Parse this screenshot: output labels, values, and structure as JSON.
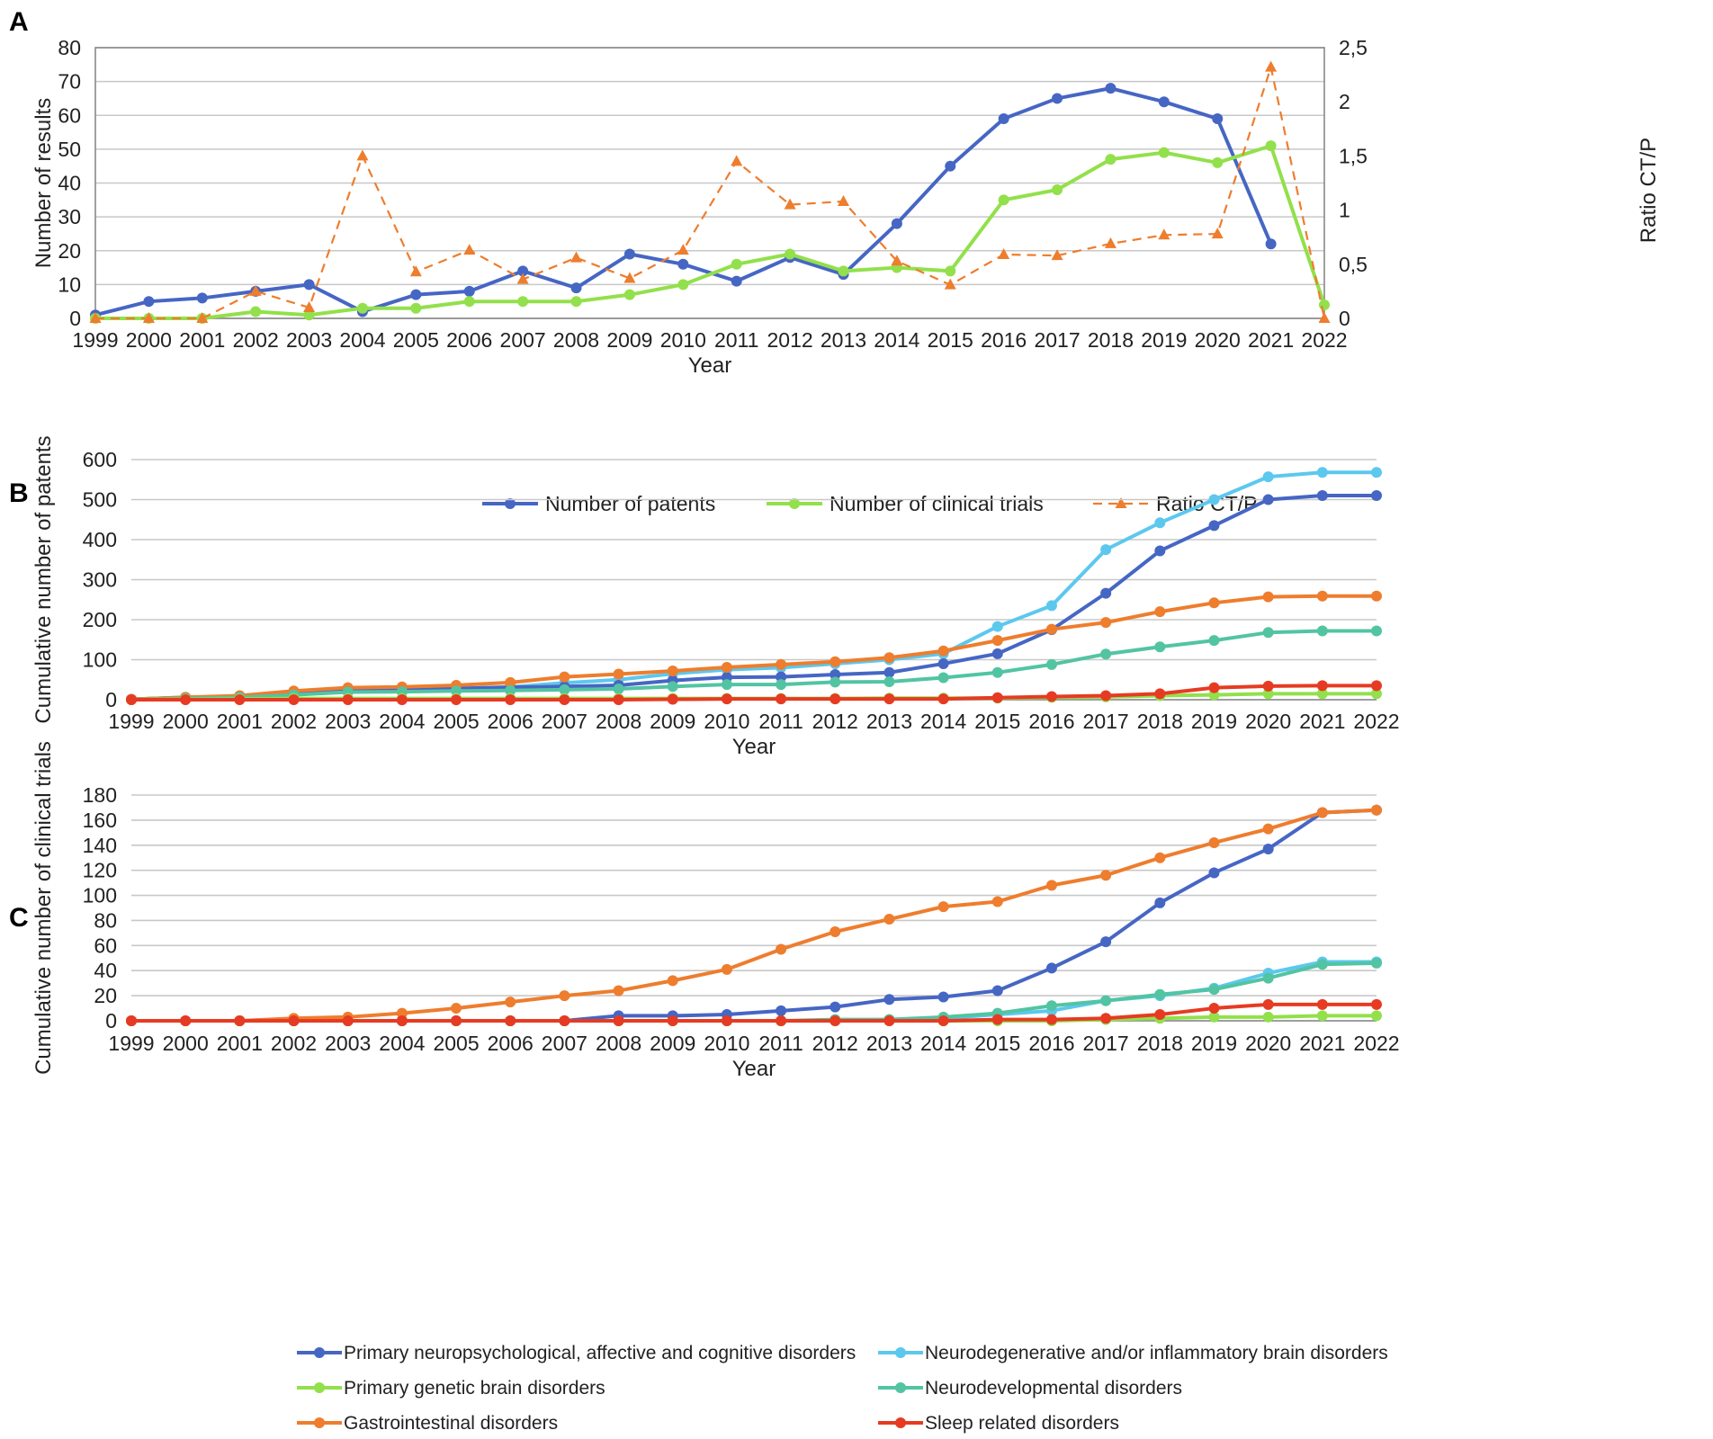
{
  "chart_data": [
    {
      "panel": "A",
      "type": "line",
      "categories": [
        "1999",
        "2000",
        "2001",
        "2002",
        "2003",
        "2004",
        "2005",
        "2006",
        "2007",
        "2008",
        "2009",
        "2010",
        "2011",
        "2012",
        "2013",
        "2014",
        "2015",
        "2016",
        "2017",
        "2018",
        "2019",
        "2020",
        "2021",
        "2022"
      ],
      "xlabel": "Year",
      "ylabel": "Number of results",
      "ylim": [
        0,
        80
      ],
      "yticks": [
        "0",
        "10",
        "20",
        "30",
        "40",
        "50",
        "60",
        "70",
        "80"
      ],
      "y2label": "Ratio CT/P",
      "y2lim": [
        0,
        2.5
      ],
      "y2ticks": [
        "0",
        "0,5",
        "1",
        "1,5",
        "2",
        "2,5"
      ],
      "grid": true,
      "series": [
        {
          "name": "Number of patents",
          "axis": "left",
          "color": "#4666c4",
          "values": [
            1,
            5,
            6,
            8,
            10,
            2,
            7,
            8,
            14,
            9,
            19,
            16,
            11,
            18,
            13,
            28,
            45,
            59,
            65,
            68,
            64,
            59,
            22,
            null
          ]
        },
        {
          "name": "Number of clinical trials",
          "axis": "left",
          "color": "#92e04b",
          "values": [
            0,
            0,
            0,
            2,
            1,
            3,
            3,
            5,
            5,
            5,
            7,
            10,
            16,
            19,
            14,
            15,
            14,
            35,
            38,
            47,
            49,
            46,
            51,
            4
          ]
        },
        {
          "name": "Ratio CT/P",
          "axis": "right",
          "color": "#ee7d2e",
          "dashed": true,
          "values": [
            0,
            0,
            0,
            0.25,
            0.1,
            1.5,
            0.43,
            0.63,
            0.36,
            0.56,
            0.37,
            0.63,
            1.45,
            1.05,
            1.08,
            0.53,
            0.31,
            0.59,
            0.58,
            0.69,
            0.77,
            0.78,
            2.32,
            0
          ]
        }
      ],
      "legend": [
        "Number of patents",
        "Number of clinical trials",
        "Ratio CT/P"
      ]
    },
    {
      "panel": "B",
      "type": "line",
      "categories": [
        "1999",
        "2000",
        "2001",
        "2002",
        "2003",
        "2004",
        "2005",
        "2006",
        "2007",
        "2008",
        "2009",
        "2010",
        "2011",
        "2012",
        "2013",
        "2014",
        "2015",
        "2016",
        "2017",
        "2018",
        "2019",
        "2020",
        "2021",
        "2022"
      ],
      "xlabel": "Year",
      "ylabel": "Cumulative number of patents",
      "ylim": [
        0,
        600
      ],
      "yticks": [
        "0",
        "100",
        "200",
        "300",
        "400",
        "500",
        "600"
      ],
      "grid": true,
      "series": [
        {
          "name": "Neurodegenerative and/or inflammatory brain disorders",
          "color": "#5cc8ee",
          "values": [
            1,
            5,
            8,
            15,
            22,
            25,
            28,
            32,
            42,
            50,
            65,
            75,
            80,
            90,
            100,
            115,
            183,
            235,
            375,
            442,
            500,
            557,
            568,
            568
          ]
        },
        {
          "name": "Primary neuropsychological, affective and cognitive disorders",
          "color": "#4666c4",
          "values": [
            1,
            6,
            8,
            15,
            22,
            24,
            28,
            31,
            33,
            36,
            48,
            56,
            57,
            63,
            68,
            90,
            115,
            175,
            266,
            372,
            435,
            500,
            510,
            510
          ]
        },
        {
          "name": "Gastrointestinal disorders",
          "color": "#ee7d2e",
          "values": [
            1,
            6,
            10,
            22,
            30,
            32,
            36,
            43,
            57,
            64,
            72,
            81,
            88,
            95,
            105,
            122,
            148,
            176,
            193,
            220,
            242,
            257,
            259,
            259
          ]
        },
        {
          "name": "Neurodevelopmental disorders",
          "color": "#52c4a2",
          "values": [
            0,
            3,
            6,
            12,
            19,
            20,
            22,
            23,
            25,
            27,
            33,
            38,
            38,
            44,
            45,
            55,
            68,
            88,
            114,
            132,
            148,
            168,
            172,
            172
          ]
        },
        {
          "name": "Primary genetic brain disorders",
          "color": "#92e04b",
          "values": [
            0,
            1,
            2,
            3,
            3,
            3,
            3,
            3,
            3,
            3,
            3,
            3,
            3,
            3,
            4,
            4,
            4,
            6,
            7,
            10,
            12,
            15,
            15,
            15
          ]
        },
        {
          "name": "Sleep related disorders",
          "color": "#e63b22",
          "values": [
            0,
            0,
            0,
            0,
            0,
            0,
            0,
            0,
            0,
            0,
            1,
            2,
            2,
            2,
            2,
            2,
            5,
            8,
            10,
            15,
            30,
            34,
            35,
            35
          ]
        }
      ]
    },
    {
      "panel": "C",
      "type": "line",
      "categories": [
        "1999",
        "2000",
        "2001",
        "2002",
        "2003",
        "2004",
        "2005",
        "2006",
        "2007",
        "2008",
        "2009",
        "2010",
        "2011",
        "2012",
        "2013",
        "2014",
        "2015",
        "2016",
        "2017",
        "2018",
        "2019",
        "2020",
        "2021",
        "2022"
      ],
      "xlabel": "Year",
      "ylabel": "Cumulative number of clinical trials",
      "ylim": [
        0,
        180
      ],
      "yticks": [
        "0",
        "20",
        "40",
        "60",
        "80",
        "100",
        "120",
        "140",
        "160",
        "180"
      ],
      "grid": true,
      "series": [
        {
          "name": "Neurodegenerative and/or inflammatory brain disorders",
          "color": "#5cc8ee",
          "values": [
            0,
            0,
            0,
            0,
            0,
            0,
            0,
            0,
            0,
            0,
            0,
            0,
            0,
            0,
            1,
            2,
            5,
            8,
            16,
            20,
            26,
            38,
            47,
            47
          ]
        },
        {
          "name": "Neurodevelopmental disorders",
          "color": "#52c4a2",
          "values": [
            0,
            0,
            0,
            0,
            0,
            0,
            0,
            0,
            0,
            0,
            0,
            0,
            0,
            1,
            1,
            3,
            6,
            12,
            16,
            21,
            25,
            34,
            45,
            46
          ]
        },
        {
          "name": "Primary genetic brain disorders",
          "color": "#92e04b",
          "values": [
            0,
            0,
            0,
            0,
            0,
            0,
            0,
            0,
            0,
            0,
            0,
            0,
            0,
            0,
            0,
            0,
            0,
            0,
            1,
            2,
            3,
            3,
            4,
            4
          ]
        },
        {
          "name": "Primary neuropsychological, affective and cognitive disorders",
          "color": "#4666c4",
          "values": [
            0,
            0,
            0,
            0,
            0,
            0,
            0,
            0,
            0,
            4,
            4,
            5,
            8,
            11,
            17,
            19,
            24,
            42,
            63,
            94,
            118,
            137,
            166,
            168
          ]
        },
        {
          "name": "Gastrointestinal disorders",
          "color": "#ee7d2e",
          "values": [
            0,
            0,
            0,
            2,
            3,
            6,
            10,
            15,
            20,
            24,
            32,
            41,
            57,
            71,
            81,
            91,
            95,
            108,
            116,
            130,
            142,
            153,
            166,
            168
          ]
        },
        {
          "name": "Sleep related disorders",
          "color": "#e63b22",
          "values": [
            0,
            0,
            0,
            0,
            0,
            0,
            0,
            0,
            0,
            0,
            0,
            0,
            0,
            0,
            0,
            0,
            1,
            1,
            2,
            5,
            10,
            13,
            13,
            13
          ]
        }
      ],
      "legend": [
        {
          "label": "Primary neuropsychological, affective and cognitive disorders",
          "color": "#4666c4"
        },
        {
          "label": "Neurodegenerative and/or inflammatory brain disorders",
          "color": "#5cc8ee"
        },
        {
          "label": "Primary genetic brain disorders",
          "color": "#92e04b"
        },
        {
          "label": "Neurodevelopmental disorders",
          "color": "#52c4a2"
        },
        {
          "label": "Gastrointestinal disorders",
          "color": "#ee7d2e"
        },
        {
          "label": "Sleep related disorders",
          "color": "#e63b22"
        }
      ]
    }
  ],
  "panel_labels": [
    "A",
    "B",
    "C"
  ],
  "colors": {
    "grid": "#c8c8c8",
    "axis": "#888888",
    "text": "#222222"
  }
}
